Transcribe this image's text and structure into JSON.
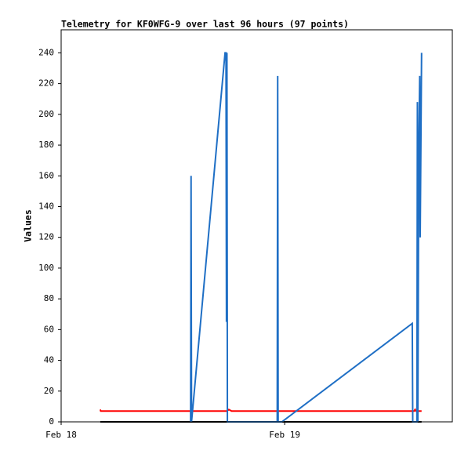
{
  "chart_data": {
    "type": "line",
    "title": "Telemetry for KF0WFG-9 over last 96 hours (97 points)",
    "y_label": "Values",
    "xlim": [
      0,
      42
    ],
    "xticks": [
      {
        "value": 0,
        "label": "Feb 18"
      },
      {
        "value": 24,
        "label": "Feb 19"
      }
    ],
    "ylim": [
      0,
      255
    ],
    "yticks": [
      0,
      20,
      40,
      60,
      80,
      100,
      120,
      140,
      160,
      180,
      200,
      220,
      240
    ],
    "series": [
      {
        "color": "#000000",
        "x": [
          4.2,
          38.7
        ],
        "values": [
          0,
          0
        ]
      },
      {
        "color": "#ff0000",
        "x": [
          4.2,
          4.25,
          17.8,
          18.0,
          18.3,
          23.2,
          23.25,
          23.3,
          37.9,
          38.0,
          38.1,
          38.7
        ],
        "values": [
          8,
          7,
          7,
          8,
          7,
          7,
          8,
          7,
          7,
          8,
          7,
          7
        ]
      },
      {
        "color": "#1f6fc5",
        "x": [
          13.9,
          13.95,
          14.0,
          17.6,
          17.7,
          17.75,
          17.8,
          17.85,
          23.2,
          23.25,
          23.3,
          23.7,
          37.7,
          37.75,
          38.2,
          38.25,
          38.3,
          38.4,
          38.5,
          38.55,
          38.7
        ],
        "values": [
          0,
          160,
          0,
          240,
          240,
          65,
          240,
          0,
          0,
          225,
          0,
          0,
          64,
          0,
          0,
          208,
          0,
          177,
          225,
          120,
          240
        ]
      }
    ]
  }
}
